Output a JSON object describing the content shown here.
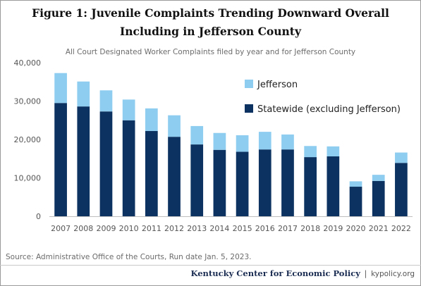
{
  "figure": {
    "title_line1": "Figure 1: Juvenile Complaints Trending Downward Overall",
    "title_line2": "Including in Jefferson County",
    "subtitle": "All Court Designated Worker Complaints filed by year and for Jefferson County",
    "source": "Source: Administrative  Office of the Courts, Run date Jan. 5, 2023.",
    "footer_org": "Kentucky Center for Economic Policy",
    "footer_sep": "|",
    "footer_url": "kypolicy.org"
  },
  "chart_data": {
    "type": "bar",
    "stacked": true,
    "title": "Figure 1: Juvenile Complaints Trending Downward Overall Including in Jefferson County",
    "subtitle": "All Court Designated Worker Complaints filed by year and for Jefferson County",
    "xlabel": "",
    "ylabel": "",
    "ylim": [
      0,
      40000
    ],
    "yticks": [
      0,
      10000,
      20000,
      30000,
      40000
    ],
    "ytick_labels": [
      "0",
      "10,000",
      "20,000",
      "30,000",
      "40,000"
    ],
    "grid": false,
    "legend_position": "top-right",
    "categories": [
      "2007",
      "2008",
      "2009",
      "2010",
      "2011",
      "2012",
      "2013",
      "2014",
      "2015",
      "2016",
      "2017",
      "2018",
      "2019",
      "2020",
      "2021",
      "2022"
    ],
    "series": [
      {
        "name": "Statewide (excluding Jefferson)",
        "color": "#0b3260",
        "values": [
          29500,
          28600,
          27300,
          25000,
          22200,
          20700,
          18700,
          17300,
          16800,
          17400,
          17400,
          15400,
          15600,
          7700,
          9200,
          13900
        ]
      },
      {
        "name": "Jefferson",
        "color": "#8ecdf0",
        "values": [
          7800,
          6500,
          5500,
          5400,
          5900,
          5600,
          4800,
          4400,
          4300,
          4600,
          3900,
          2900,
          2600,
          1400,
          1600,
          2700
        ]
      }
    ],
    "legend_order": [
      "Jefferson",
      "Statewide (excluding Jefferson)"
    ]
  }
}
